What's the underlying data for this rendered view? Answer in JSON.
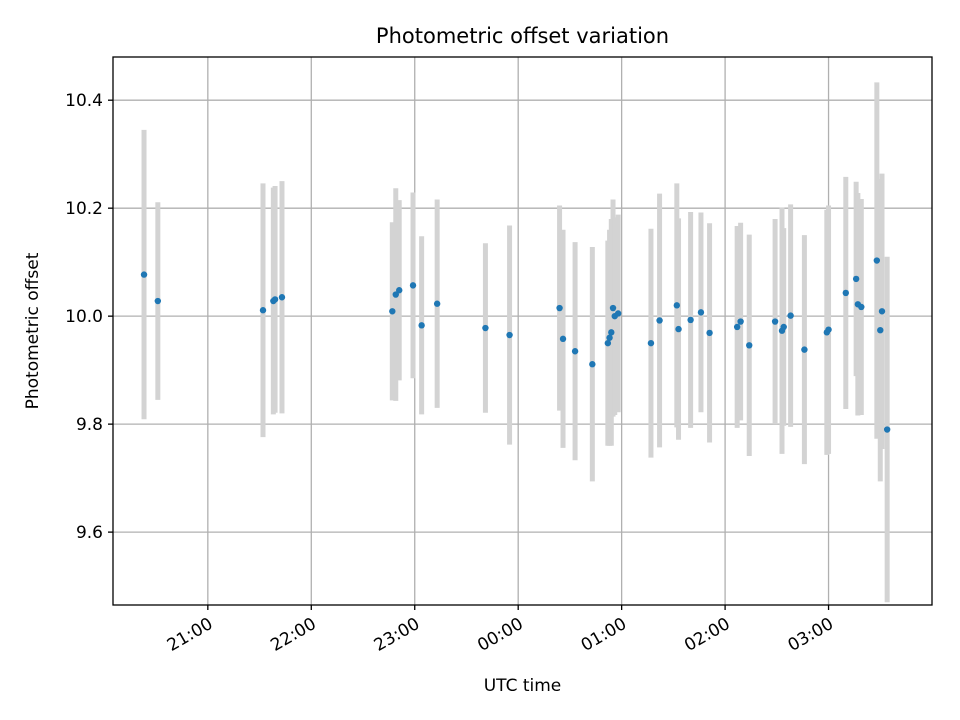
{
  "chart_data": {
    "type": "scatter",
    "title": "Photometric offset variation",
    "xlabel": "UTC time",
    "ylabel": "Photometric offset",
    "grid": true,
    "legend": "none",
    "x_tick_labels": [
      "21:00",
      "22:00",
      "23:00",
      "00:00",
      "01:00",
      "02:00",
      "03:00"
    ],
    "y_tick_labels": [
      "9.6",
      "9.8",
      "10.0",
      "10.2",
      "10.4"
    ],
    "y_ticks": [
      9.6,
      9.8,
      10.0,
      10.2,
      10.4
    ],
    "ylim": [
      9.465,
      10.48
    ],
    "xlim": [
      "20:05",
      "04:00"
    ],
    "colors": {
      "points": "#1f77b4",
      "error_bars": "#d3d3d3",
      "grid": "#b0b0b0",
      "axes": "#000000"
    },
    "series": [
      {
        "x": [
          "20:23",
          "20:31",
          "21:32",
          "21:38",
          "21:39",
          "21:43",
          "22:47",
          "22:49",
          "22:51",
          "22:59",
          "23:04",
          "23:13",
          "23:41",
          "23:55",
          "00:24",
          "00:26",
          "00:33",
          "00:43",
          "00:52",
          "00:53",
          "00:54",
          "00:55",
          "00:56",
          "00:58",
          "01:17",
          "01:22",
          "01:32",
          "01:33",
          "01:40",
          "01:46",
          "01:51",
          "02:07",
          "02:09",
          "02:14",
          "02:29",
          "02:33",
          "02:34",
          "02:38",
          "02:46",
          "02:59",
          "03:00",
          "03:10",
          "03:16",
          "03:17",
          "03:19",
          "03:28",
          "03:30",
          "03:31",
          "03:34"
        ],
        "y": [
          10.077,
          10.028,
          10.011,
          10.028,
          10.031,
          10.035,
          10.009,
          10.04,
          10.048,
          10.057,
          9.983,
          10.023,
          9.978,
          9.965,
          10.015,
          9.958,
          9.935,
          9.911,
          9.95,
          9.96,
          9.97,
          10.015,
          10.0,
          10.005,
          9.95,
          9.992,
          10.02,
          9.976,
          9.993,
          10.007,
          9.969,
          9.98,
          9.99,
          9.946,
          9.99,
          9.973,
          9.98,
          10.001,
          9.938,
          9.97,
          9.975,
          10.043,
          10.069,
          10.022,
          10.017,
          10.103,
          9.974,
          10.009,
          9.79
        ],
        "err": [
          0.268,
          0.183,
          0.235,
          0.21,
          0.21,
          0.215,
          0.165,
          0.197,
          0.167,
          0.172,
          0.165,
          0.193,
          0.157,
          0.203,
          0.19,
          0.202,
          0.202,
          0.217,
          0.19,
          0.2,
          0.21,
          0.201,
          0.183,
          0.183,
          0.212,
          0.235,
          0.226,
          0.205,
          0.2,
          0.185,
          0.203,
          0.187,
          0.183,
          0.205,
          0.19,
          0.228,
          0.183,
          0.206,
          0.212,
          0.227,
          0.23,
          0.215,
          0.18,
          0.206,
          0.2,
          0.33,
          0.28,
          0.255,
          0.32
        ]
      }
    ]
  }
}
